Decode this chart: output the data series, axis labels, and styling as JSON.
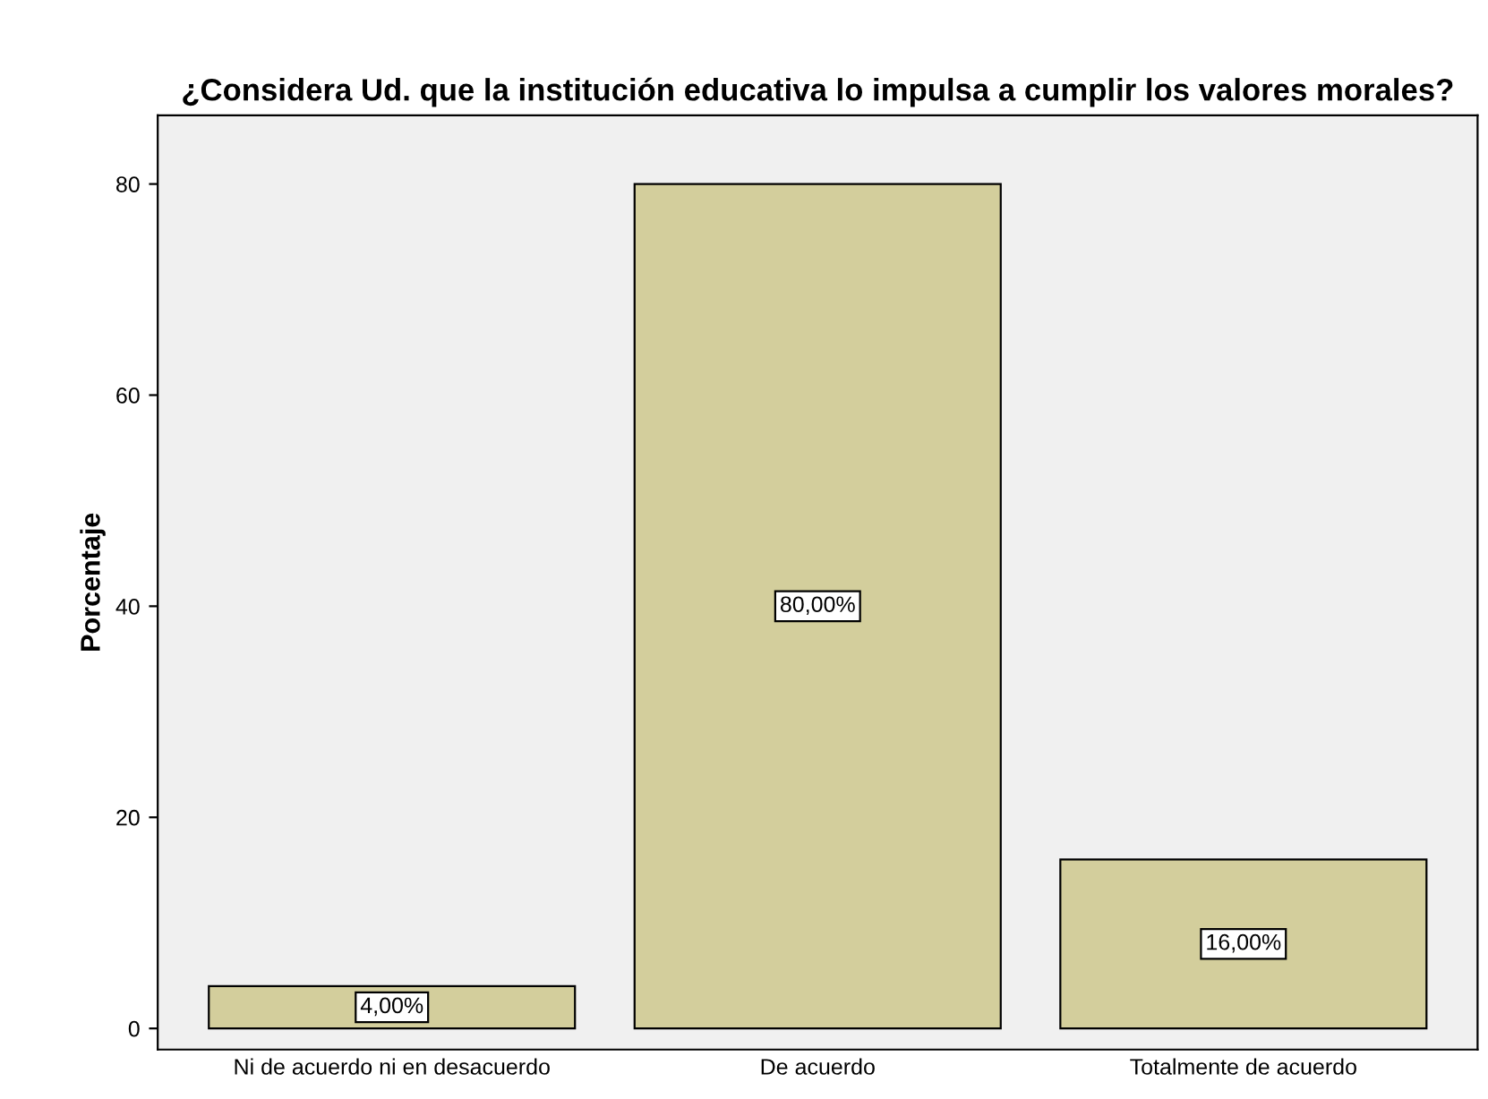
{
  "chart_data": {
    "type": "bar",
    "title": "¿Considera Ud. que la institución educativa lo impulsa a cumplir los valores morales?",
    "ylabel": "Porcentaje",
    "categories": [
      "Ni de acuerdo ni en desacuerdo",
      "De acuerdo",
      "Totalmente de acuerdo"
    ],
    "values": [
      4,
      80,
      16
    ],
    "value_labels": [
      "4,00%",
      "80,00%",
      "16,00%"
    ],
    "color": "#d3ce9c",
    "ylim": [
      -2,
      86.5
    ],
    "yticks": [
      0,
      20,
      40,
      60,
      80
    ],
    "grid": false
  }
}
